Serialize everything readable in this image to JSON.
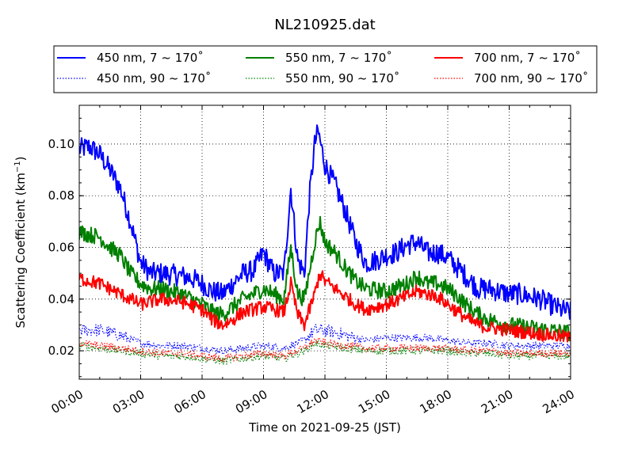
{
  "chart_data": {
    "type": "line",
    "title": "NL210925.dat",
    "xlabel": "Time on 2021-09-25 (JST)",
    "ylabel": "Scattering Coefficient (km",
    "ylabel_sup": "−1",
    "ylabel_end": ")",
    "xlim": [
      "00:00",
      "24:00"
    ],
    "ylim": [
      0.009,
      0.115
    ],
    "x_ticks": [
      "00:00",
      "03:00",
      "06:00",
      "09:00",
      "12:00",
      "15:00",
      "18:00",
      "21:00",
      "24:00"
    ],
    "y_ticks": [
      "0.02",
      "0.04",
      "0.06",
      "0.08",
      "0.10"
    ],
    "y_tick_values": [
      0.02,
      0.04,
      0.06,
      0.08,
      0.1
    ],
    "grid": true,
    "legend_position": "top",
    "series": [
      {
        "name": "450 nm, 7 ~ 170˚",
        "color": "#0000ff",
        "style": "solid",
        "x": [
          "00:00",
          "00:30",
          "01:00",
          "01:30",
          "02:00",
          "02:30",
          "03:00",
          "03:30",
          "04:00",
          "05:00",
          "05:30",
          "06:00",
          "06:30",
          "07:00",
          "07:30",
          "08:00",
          "08:30",
          "09:00",
          "09:30",
          "10:00",
          "10:20",
          "10:40",
          "11:00",
          "11:15",
          "11:30",
          "11:40",
          "12:00",
          "12:30",
          "13:00",
          "13:30",
          "14:00",
          "14:30",
          "15:00",
          "15:30",
          "16:00",
          "16:30",
          "17:00",
          "17:30",
          "18:00",
          "18:30",
          "19:00",
          "19:30",
          "20:00",
          "20:30",
          "21:00",
          "21:30",
          "22:00",
          "22:30",
          "23:00",
          "23:30",
          "24:00"
        ],
        "y": [
          0.098,
          0.099,
          0.096,
          0.09,
          0.083,
          0.07,
          0.054,
          0.05,
          0.05,
          0.049,
          0.048,
          0.046,
          0.043,
          0.042,
          0.046,
          0.05,
          0.051,
          0.058,
          0.05,
          0.05,
          0.083,
          0.055,
          0.05,
          0.08,
          0.1,
          0.105,
          0.092,
          0.084,
          0.074,
          0.062,
          0.054,
          0.055,
          0.057,
          0.058,
          0.061,
          0.062,
          0.058,
          0.058,
          0.056,
          0.052,
          0.048,
          0.044,
          0.044,
          0.043,
          0.042,
          0.042,
          0.041,
          0.04,
          0.038,
          0.036,
          0.035
        ]
      },
      {
        "name": "450 nm, 90 ~ 170˚",
        "color": "#0000ff",
        "style": "dotted",
        "x": [
          "00:00",
          "01:00",
          "02:00",
          "03:00",
          "04:00",
          "05:00",
          "06:00",
          "07:00",
          "08:00",
          "09:00",
          "10:00",
          "11:00",
          "11:30",
          "12:00",
          "13:00",
          "14:00",
          "15:00",
          "16:00",
          "17:00",
          "18:00",
          "19:00",
          "20:00",
          "21:00",
          "22:00",
          "23:00",
          "24:00"
        ],
        "y": [
          0.028,
          0.028,
          0.026,
          0.023,
          0.022,
          0.022,
          0.021,
          0.02,
          0.021,
          0.022,
          0.021,
          0.024,
          0.028,
          0.028,
          0.026,
          0.024,
          0.025,
          0.025,
          0.025,
          0.024,
          0.023,
          0.023,
          0.022,
          0.022,
          0.022,
          0.022
        ]
      },
      {
        "name": "550 nm, 7 ~ 170˚",
        "color": "#008000",
        "style": "solid",
        "x": [
          "00:00",
          "00:30",
          "01:00",
          "01:30",
          "02:00",
          "02:30",
          "03:00",
          "03:30",
          "04:00",
          "05:00",
          "06:00",
          "06:30",
          "07:00",
          "07:30",
          "08:00",
          "09:00",
          "09:30",
          "10:00",
          "10:20",
          "10:40",
          "11:00",
          "11:30",
          "11:45",
          "12:00",
          "12:30",
          "13:00",
          "13:30",
          "14:00",
          "15:00",
          "16:00",
          "16:30",
          "17:00",
          "17:30",
          "18:00",
          "18:30",
          "19:00",
          "19:30",
          "20:00",
          "21:00",
          "22:00",
          "23:00",
          "24:00"
        ],
        "y": [
          0.066,
          0.065,
          0.064,
          0.06,
          0.057,
          0.05,
          0.046,
          0.044,
          0.044,
          0.042,
          0.038,
          0.035,
          0.034,
          0.037,
          0.04,
          0.044,
          0.042,
          0.04,
          0.06,
          0.042,
          0.04,
          0.062,
          0.07,
          0.062,
          0.058,
          0.052,
          0.047,
          0.044,
          0.043,
          0.046,
          0.049,
          0.046,
          0.046,
          0.044,
          0.041,
          0.037,
          0.034,
          0.032,
          0.03,
          0.029,
          0.028,
          0.027
        ]
      },
      {
        "name": "550 nm, 90 ~ 170˚",
        "color": "#008000",
        "style": "dotted",
        "x": [
          "00:00",
          "01:00",
          "02:00",
          "03:00",
          "04:00",
          "05:00",
          "06:00",
          "07:00",
          "08:00",
          "09:00",
          "10:00",
          "11:00",
          "11:30",
          "12:00",
          "13:00",
          "14:00",
          "15:00",
          "16:00",
          "17:00",
          "18:00",
          "19:00",
          "20:00",
          "21:00",
          "22:00",
          "23:00",
          "24:00"
        ],
        "y": [
          0.022,
          0.021,
          0.02,
          0.019,
          0.018,
          0.018,
          0.017,
          0.016,
          0.017,
          0.018,
          0.017,
          0.02,
          0.023,
          0.022,
          0.021,
          0.02,
          0.02,
          0.02,
          0.02,
          0.02,
          0.019,
          0.019,
          0.018,
          0.018,
          0.018,
          0.018
        ]
      },
      {
        "name": "700 nm, 7 ~ 170˚",
        "color": "#ff0000",
        "style": "solid",
        "x": [
          "00:00",
          "00:30",
          "01:00",
          "01:30",
          "02:00",
          "02:30",
          "03:00",
          "03:30",
          "04:00",
          "05:00",
          "06:00",
          "06:30",
          "07:00",
          "07:30",
          "08:00",
          "09:00",
          "09:30",
          "10:00",
          "10:20",
          "10:40",
          "11:00",
          "11:30",
          "11:45",
          "12:00",
          "12:30",
          "13:00",
          "13:30",
          "14:00",
          "15:00",
          "16:00",
          "16:30",
          "17:00",
          "17:30",
          "18:00",
          "18:30",
          "19:00",
          "19:30",
          "20:00",
          "21:00",
          "22:00",
          "23:00",
          "24:00"
        ],
        "y": [
          0.048,
          0.047,
          0.046,
          0.044,
          0.042,
          0.04,
          0.038,
          0.039,
          0.04,
          0.039,
          0.036,
          0.032,
          0.03,
          0.032,
          0.035,
          0.037,
          0.036,
          0.035,
          0.046,
          0.034,
          0.03,
          0.042,
          0.05,
          0.047,
          0.044,
          0.041,
          0.038,
          0.036,
          0.038,
          0.041,
          0.043,
          0.042,
          0.041,
          0.038,
          0.035,
          0.032,
          0.03,
          0.029,
          0.028,
          0.027,
          0.026,
          0.025
        ]
      },
      {
        "name": "700 nm, 90 ~ 170˚",
        "color": "#ff0000",
        "style": "dotted",
        "x": [
          "00:00",
          "01:00",
          "02:00",
          "03:00",
          "04:00",
          "05:00",
          "06:00",
          "07:00",
          "08:00",
          "09:00",
          "10:00",
          "11:00",
          "11:30",
          "12:00",
          "13:00",
          "14:00",
          "15:00",
          "16:00",
          "17:00",
          "18:00",
          "19:00",
          "20:00",
          "21:00",
          "22:00",
          "23:00",
          "24:00"
        ],
        "y": [
          0.023,
          0.022,
          0.021,
          0.02,
          0.019,
          0.019,
          0.018,
          0.017,
          0.018,
          0.019,
          0.018,
          0.021,
          0.024,
          0.023,
          0.022,
          0.021,
          0.021,
          0.021,
          0.021,
          0.021,
          0.02,
          0.02,
          0.019,
          0.019,
          0.019,
          0.019
        ]
      }
    ]
  }
}
